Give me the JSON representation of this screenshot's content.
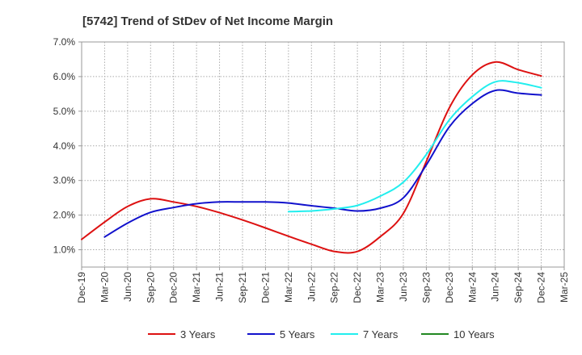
{
  "chart_data": {
    "type": "line",
    "title": "[5742]  Trend of StDev of Net Income Margin",
    "xlabel": "",
    "ylabel": "",
    "x_ticks": [
      "Dec-19",
      "Mar-20",
      "Jun-20",
      "Sep-20",
      "Dec-20",
      "Mar-21",
      "Jun-21",
      "Sep-21",
      "Dec-21",
      "Mar-22",
      "Jun-22",
      "Sep-22",
      "Dec-22",
      "Mar-23",
      "Jun-23",
      "Sep-23",
      "Dec-23",
      "Mar-24",
      "Jun-24",
      "Sep-24",
      "Dec-24",
      "Mar-25"
    ],
    "y_ticks": [
      "1.0%",
      "2.0%",
      "3.0%",
      "4.0%",
      "5.0%",
      "6.0%",
      "7.0%"
    ],
    "ylim": [
      0.5,
      7.0
    ],
    "grid": true,
    "legend_position": "bottom",
    "series": [
      {
        "name": "3 Years",
        "color": "#dd1111",
        "x": [
          "Dec-19",
          "Mar-20",
          "Jun-20",
          "Sep-20",
          "Dec-20",
          "Mar-21",
          "Jun-21",
          "Sep-21",
          "Dec-21",
          "Mar-22",
          "Jun-22",
          "Sep-22",
          "Dec-22",
          "Mar-23",
          "Jun-23",
          "Sep-23",
          "Dec-23",
          "Mar-24",
          "Jun-24",
          "Sep-24",
          "Dec-24"
        ],
        "values": [
          1.3,
          1.8,
          2.25,
          2.47,
          2.38,
          2.25,
          2.07,
          1.86,
          1.63,
          1.39,
          1.16,
          0.95,
          0.95,
          1.38,
          2.05,
          3.55,
          5.1,
          6.05,
          6.42,
          6.2,
          6.02
        ]
      },
      {
        "name": "5 Years",
        "color": "#1111cc",
        "x": [
          "Mar-20",
          "Jun-20",
          "Sep-20",
          "Dec-20",
          "Mar-21",
          "Jun-21",
          "Sep-21",
          "Dec-21",
          "Mar-22",
          "Jun-22",
          "Sep-22",
          "Dec-22",
          "Mar-23",
          "Jun-23",
          "Sep-23",
          "Dec-23",
          "Mar-24",
          "Jun-24",
          "Sep-24",
          "Dec-24"
        ],
        "values": [
          1.37,
          1.77,
          2.08,
          2.22,
          2.33,
          2.38,
          2.38,
          2.38,
          2.35,
          2.27,
          2.2,
          2.12,
          2.2,
          2.5,
          3.45,
          4.55,
          5.22,
          5.6,
          5.52,
          5.47
        ]
      },
      {
        "name": "7 Years",
        "color": "#22eeee",
        "x": [
          "Mar-22",
          "Jun-22",
          "Sep-22",
          "Dec-22",
          "Mar-23",
          "Jun-23",
          "Sep-23",
          "Dec-23",
          "Mar-24",
          "Jun-24",
          "Sep-24",
          "Dec-24"
        ],
        "values": [
          2.1,
          2.12,
          2.18,
          2.28,
          2.55,
          2.95,
          3.75,
          4.75,
          5.42,
          5.85,
          5.82,
          5.68
        ]
      },
      {
        "name": "10 Years",
        "color": "#228822",
        "x": [],
        "values": []
      }
    ]
  }
}
